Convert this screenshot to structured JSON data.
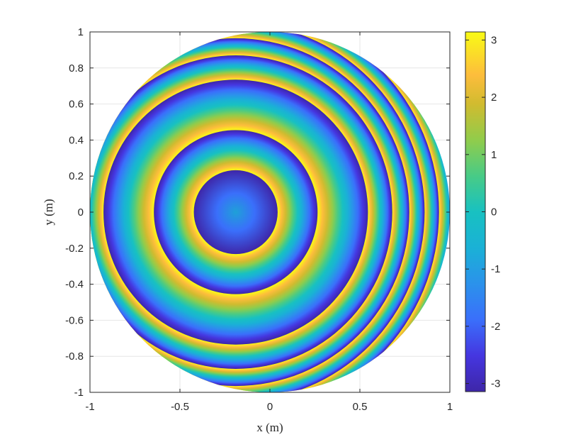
{
  "chart_data": {
    "type": "heatmap",
    "title": "",
    "xlabel": "x (m)",
    "ylabel": "y (m)",
    "xlim": [
      -1,
      1
    ],
    "ylim": [
      -1,
      1
    ],
    "xticks": [
      "-1",
      "-0.5",
      "0",
      "0.5",
      "1"
    ],
    "yticks": [
      "1",
      "0.8",
      "0.6",
      "0.4",
      "0.2",
      "0",
      "-0.2",
      "-0.4",
      "-0.6",
      "-0.8",
      "-1"
    ],
    "colorbar": {
      "colormap": "parula",
      "range": [
        -3.1416,
        3.1416
      ],
      "ticks": [
        "3",
        "2",
        "1",
        "0",
        "-1",
        "-2",
        "-3"
      ]
    },
    "field": {
      "quantity": "wrapped phase",
      "aperture": "circle",
      "aperture_radius": 1,
      "ring_center": [
        -0.19,
        0
      ],
      "ring_count": 7
    },
    "grid": true
  }
}
